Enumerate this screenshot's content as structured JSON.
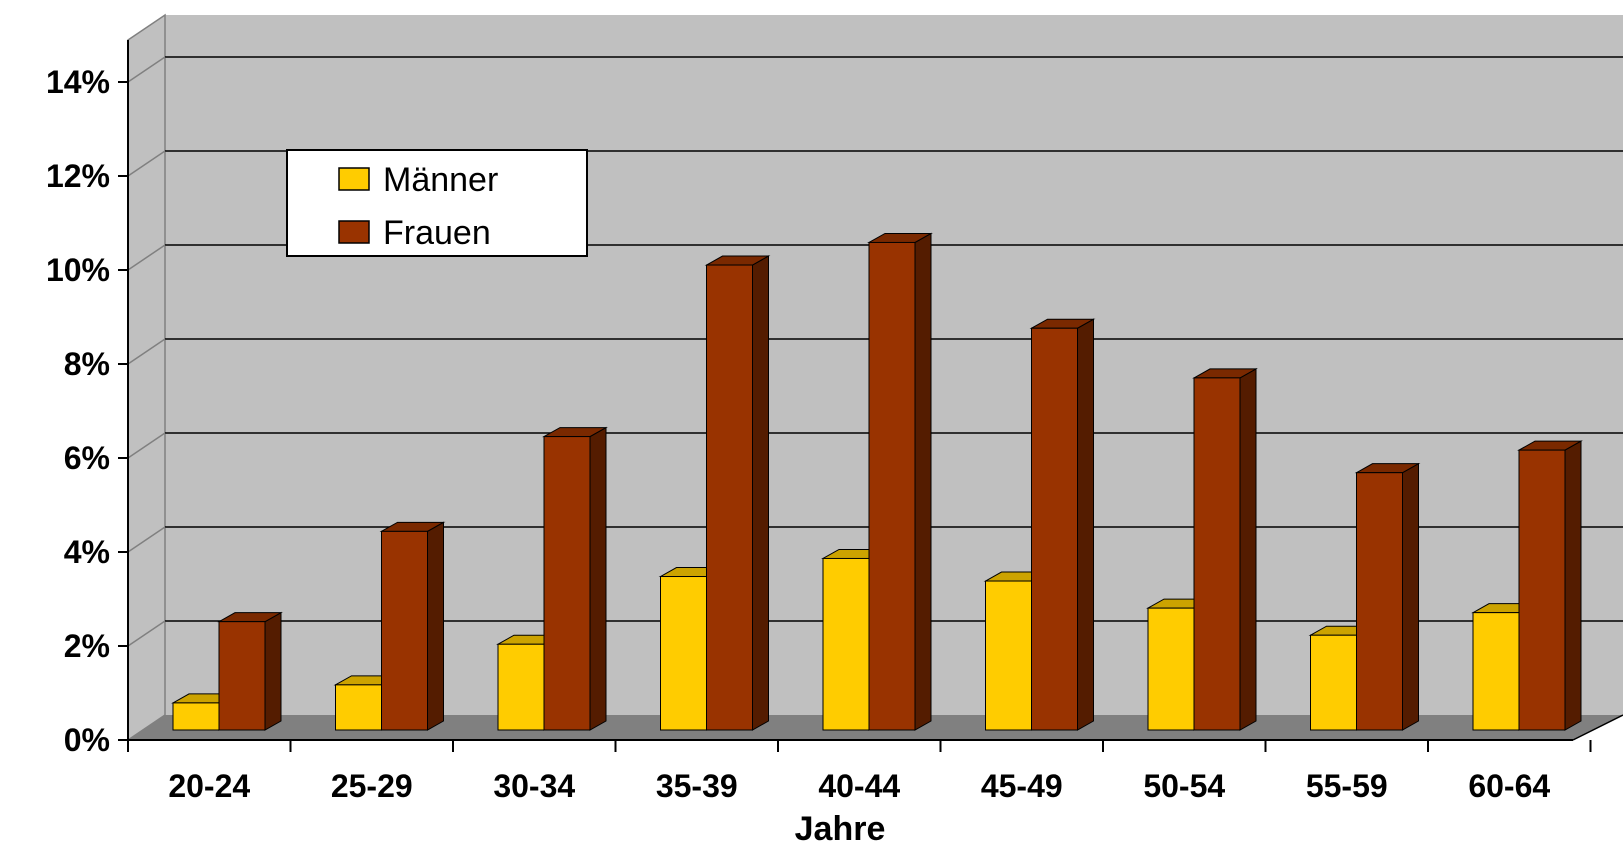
{
  "chart_data": {
    "type": "bar",
    "style": "3d-clustered",
    "categories": [
      "20-24",
      "25-29",
      "30-34",
      "35-39",
      "40-44",
      "45-49",
      "50-54",
      "55-59",
      "60-64"
    ],
    "series": [
      {
        "name": "Männer",
        "color": "#FFCC00",
        "values": [
          0.6,
          1.0,
          1.9,
          3.4,
          3.8,
          3.3,
          2.7,
          2.1,
          2.6
        ]
      },
      {
        "name": "Frauen",
        "color": "#993300",
        "values": [
          2.4,
          4.4,
          6.5,
          10.3,
          10.8,
          8.9,
          7.8,
          5.7,
          6.2
        ]
      }
    ],
    "y_ticks": [
      "0%",
      "2%",
      "4%",
      "6%",
      "8%",
      "10%",
      "12%",
      "14%"
    ],
    "ylim": [
      0,
      14
    ],
    "y_unit": "%",
    "xlabel": "Jahre",
    "ylabel": "",
    "grid": true,
    "legend_position": "top-left",
    "colors": {
      "wall": "#C0C0C0",
      "floor": "#808080"
    }
  }
}
